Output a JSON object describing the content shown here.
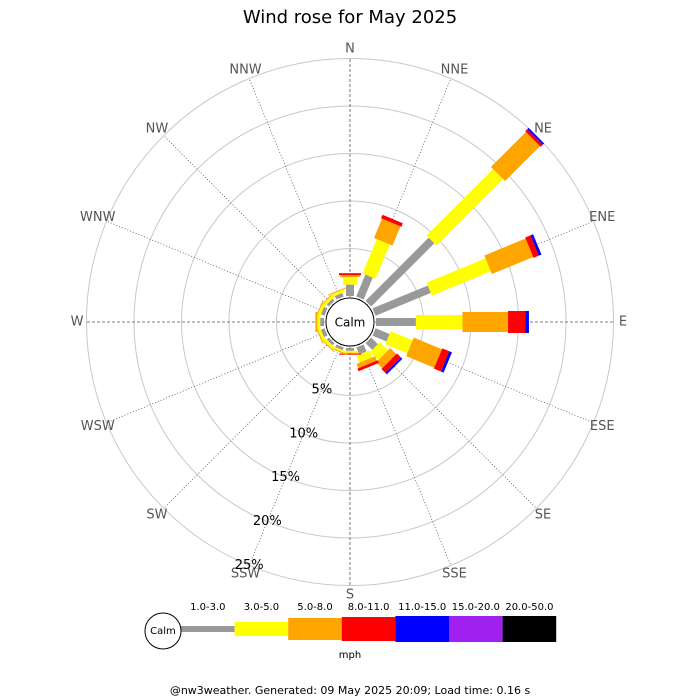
{
  "chart_data": {
    "type": "windrose",
    "title": "Wind rose for May 2025",
    "calm_label": "Calm",
    "unit": "mph",
    "footer": "@nw3weather. Generated: 09 May 2025 20:09; Load time: 0.16 s",
    "categories": [
      "N",
      "NNE",
      "NE",
      "ENE",
      "E",
      "ESE",
      "SE",
      "SSE",
      "S",
      "SSW",
      "SW",
      "WSW",
      "W",
      "WNW",
      "NW",
      "NNW"
    ],
    "rlim": [
      0,
      25
    ],
    "rticks": [
      {
        "value": 5,
        "label": "5%"
      },
      {
        "value": 10,
        "label": "10%"
      },
      {
        "value": 15,
        "label": "15%"
      },
      {
        "value": 20,
        "label": "20%"
      },
      {
        "value": 25,
        "label": "25%"
      }
    ],
    "series": [
      {
        "name": "1.0-3.0",
        "color": "#999999",
        "values": [
          1.2,
          2.5,
          9.4,
          6.3,
          4.2,
          1.6,
          1.0,
          0.8,
          0.3,
          0.3,
          0.3,
          0.4,
          0.4,
          0.4,
          0.3,
          0.4
        ]
      },
      {
        "name": "3.0-5.0",
        "color": "#ffff00",
        "values": [
          0.8,
          3.9,
          9.9,
          6.7,
          4.9,
          2.5,
          1.2,
          0.8,
          0.2,
          0.2,
          0.3,
          0.3,
          0.3,
          0.3,
          0.3,
          0.3
        ]
      },
      {
        "name": "5.0-8.0",
        "color": "#ffa500",
        "values": [
          0.2,
          2.2,
          5.2,
          4.7,
          4.8,
          3.2,
          0.9,
          0.5,
          0.1,
          0.1,
          0.1,
          0.1,
          0.2,
          0.1,
          0.1,
          0.1
        ]
      },
      {
        "name": "8.0-11.0",
        "color": "#ff0000",
        "values": [
          0.2,
          0.4,
          0.3,
          0.6,
          1.8,
          0.8,
          0.6,
          0.3,
          0.1,
          0,
          0,
          0,
          0,
          0,
          0,
          0
        ]
      },
      {
        "name": "11.0-15.0",
        "color": "#0000ff",
        "values": [
          0,
          0,
          0.2,
          0.3,
          0.4,
          0.3,
          0.2,
          0,
          0,
          0,
          0,
          0,
          0,
          0,
          0,
          0
        ]
      },
      {
        "name": "15.0-20.0",
        "color": "#a020f0",
        "values": [
          0,
          0,
          0,
          0,
          0,
          0,
          0,
          0,
          0,
          0,
          0,
          0,
          0,
          0,
          0,
          0
        ]
      },
      {
        "name": "20.0-50.0",
        "color": "#000000",
        "values": [
          0,
          0,
          0,
          0,
          0,
          0,
          0,
          0,
          0,
          0,
          0,
          0,
          0,
          0,
          0,
          0
        ]
      }
    ]
  }
}
